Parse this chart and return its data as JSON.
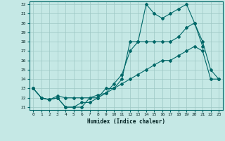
{
  "xlabel": "Humidex (Indice chaleur)",
  "ylabel": "",
  "xlim": [
    -0.5,
    23.5
  ],
  "ylim": [
    20.7,
    32.3
  ],
  "yticks": [
    21,
    22,
    23,
    24,
    25,
    26,
    27,
    28,
    29,
    30,
    31,
    32
  ],
  "xticks": [
    0,
    1,
    2,
    3,
    4,
    5,
    6,
    7,
    8,
    9,
    10,
    11,
    12,
    13,
    14,
    15,
    16,
    17,
    18,
    19,
    20,
    21,
    22,
    23
  ],
  "bg_color": "#c5e8e5",
  "grid_color": "#9dc8c5",
  "line_color": "#006868",
  "line1_x": [
    0,
    1,
    2,
    3,
    4,
    5,
    6,
    7,
    8,
    9,
    10,
    11,
    12,
    13,
    14,
    15,
    16,
    17,
    18,
    19,
    20,
    21,
    22,
    23
  ],
  "line1_y": [
    23,
    22,
    21.8,
    22,
    21,
    21,
    21,
    22,
    22,
    23,
    23,
    24,
    28,
    28,
    32,
    31,
    30.5,
    31,
    31.5,
    32,
    30,
    28,
    25,
    24
  ],
  "line2_x": [
    0,
    1,
    2,
    3,
    4,
    5,
    6,
    7,
    8,
    9,
    10,
    11,
    12,
    13,
    14,
    15,
    16,
    17,
    18,
    19,
    20,
    21
  ],
  "line2_y": [
    23,
    22,
    21.8,
    22,
    21,
    21,
    21.5,
    21.5,
    22,
    22.5,
    23.5,
    24.5,
    27,
    28,
    28,
    28,
    28,
    28,
    28.5,
    29.5,
    30,
    27.5
  ],
  "line3_x": [
    0,
    1,
    2,
    3,
    4,
    5,
    6,
    7,
    8,
    9,
    10,
    11,
    12,
    13,
    14,
    15,
    16,
    17,
    18,
    19,
    20,
    21,
    22,
    23
  ],
  "line3_y": [
    23,
    22,
    21.8,
    22.2,
    22,
    22,
    22,
    22,
    22.3,
    22.5,
    23,
    23.5,
    24,
    24.5,
    25,
    25.5,
    26,
    26,
    26.5,
    27,
    27.5,
    27,
    24,
    24
  ]
}
